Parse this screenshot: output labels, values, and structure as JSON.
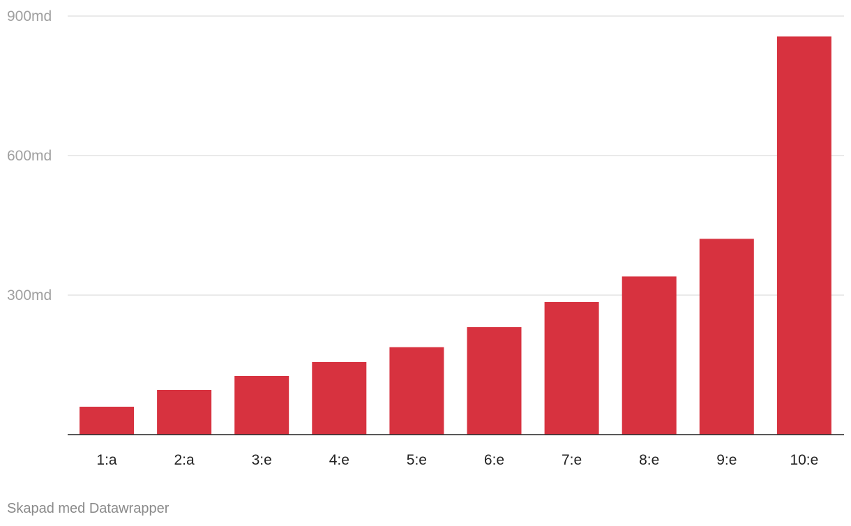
{
  "chart_data": {
    "type": "bar",
    "categories": [
      "1:a",
      "2:a",
      "3:e",
      "4:e",
      "5:e",
      "6:e",
      "7:e",
      "8:e",
      "9:e",
      "10:e"
    ],
    "values": [
      60,
      96,
      126,
      156,
      188,
      231,
      285,
      340,
      421,
      856
    ],
    "ylim": [
      0,
      900
    ],
    "yticks": [
      300,
      600,
      900
    ],
    "ytick_labels": [
      "300md",
      "600md",
      "900md"
    ],
    "bar_color": "#d7323f",
    "grid": true
  },
  "footer": {
    "credit": "Skapad med Datawrapper"
  }
}
